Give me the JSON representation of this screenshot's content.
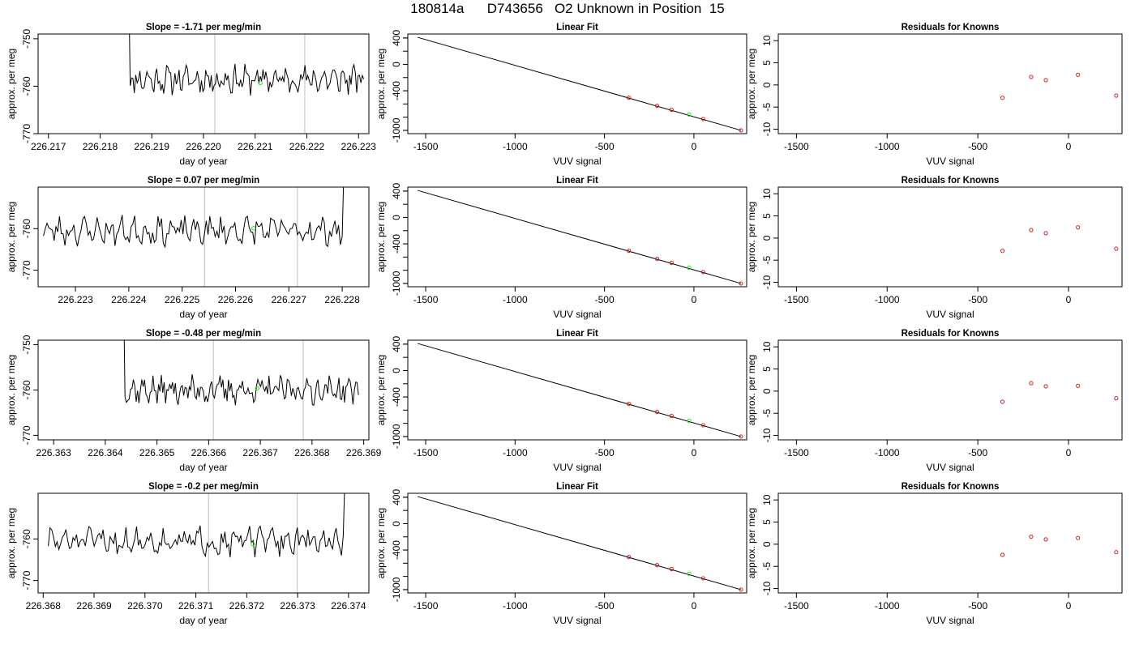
{
  "page_title": "180814a      D743656   O2 Unknown in Position  15",
  "colors": {
    "trace": "#000000",
    "unknown_marker": "#22dd22",
    "known_marker": "#cc2222",
    "cycle_markers": "#c8c8c8",
    "fit_line": "#000000"
  },
  "chart_data": [
    {
      "row": 1,
      "panel": "time-series",
      "type": "line",
      "title": "Slope =  -1.71  per meg/min",
      "xlabel": "day of year",
      "ylabel": "approx. per meg",
      "xlim": [
        226.2168,
        226.2232
      ],
      "ylim": [
        -770,
        -749
      ],
      "xticks": [
        "226.217",
        "226.218",
        "226.219",
        "226.220",
        "226.221",
        "226.222",
        "226.223"
      ],
      "yticks": [
        "-750",
        "-760",
        "-770"
      ],
      "trace": {
        "x_start": 226.2185,
        "x_end": 226.2231,
        "base": -758.6,
        "amplitude": 2.2,
        "spike": "start",
        "seed": 11
      },
      "cycle_lines": [
        226.22022,
        226.22196
      ],
      "unknown_point": {
        "x": 226.2211,
        "y": -759.3
      }
    },
    {
      "row": 1,
      "panel": "linear-fit",
      "type": "scatter",
      "title": "Linear Fit",
      "xlabel": "VUV signal",
      "ylabel": "approx. per meg",
      "xlim": [
        -1600,
        295
      ],
      "ylim": [
        -1050,
        460
      ],
      "xticks": [
        "-1500",
        "-1000",
        "-500",
        "0"
      ],
      "yticks": [
        "400",
        "0",
        "-400",
        "-1000"
      ],
      "fit_line": {
        "x": [
          -1545,
          263
        ],
        "y": [
          410,
          -1000
        ]
      },
      "known_points": [
        {
          "x": -364,
          "y": -505
        },
        {
          "x": -206,
          "y": -628
        },
        {
          "x": -125,
          "y": -688
        },
        {
          "x": 52,
          "y": -828
        },
        {
          "x": 263,
          "y": -1000
        }
      ],
      "unknown_point": {
        "x": -27,
        "y": -760
      }
    },
    {
      "row": 1,
      "panel": "residuals",
      "type": "scatter",
      "title": "Residuals for Knowns",
      "xlabel": "VUV signal",
      "ylabel": "approx. per meg",
      "xlim": [
        -1600,
        295
      ],
      "ylim": [
        -11,
        11.5
      ],
      "xticks": [
        "-1500",
        "-1000",
        "-500",
        "0"
      ],
      "yticks": [
        "10",
        "5",
        "0",
        "-5",
        "-10"
      ],
      "known_points": [
        {
          "x": -364,
          "y": -2.9
        },
        {
          "x": -206,
          "y": 1.8
        },
        {
          "x": -125,
          "y": 1.1
        },
        {
          "x": 52,
          "y": 2.3
        },
        {
          "x": 263,
          "y": -2.4
        }
      ]
    },
    {
      "row": 2,
      "panel": "time-series",
      "type": "line",
      "title": "Slope =  0.07  per meg/min",
      "xlabel": "day of year",
      "ylabel": "approx. per meg",
      "xlim": [
        226.2223,
        226.2285
      ],
      "ylim": [
        -774,
        -750
      ],
      "xticks": [
        "226.223",
        "226.224",
        "226.225",
        "226.226",
        "226.227",
        "226.228"
      ],
      "yticks": [
        "-760",
        "-770"
      ],
      "trace": {
        "x_start": 226.2224,
        "x_end": 226.2281,
        "base": -760.5,
        "amplitude": 2.5,
        "spike": "end",
        "seed": 23
      },
      "cycle_lines": [
        226.22542,
        226.22716
      ],
      "unknown_point": {
        "x": 226.22634,
        "y": -759.9
      }
    },
    {
      "row": 2,
      "panel": "linear-fit",
      "type": "scatter",
      "title": "Linear Fit",
      "xlabel": "VUV signal",
      "ylabel": "approx. per meg",
      "xlim": [
        -1600,
        295
      ],
      "ylim": [
        -1050,
        460
      ],
      "xticks": [
        "-1500",
        "-1000",
        "-500",
        "0"
      ],
      "yticks": [
        "400",
        "0",
        "-400",
        "-1000"
      ],
      "fit_line": {
        "x": [
          -1545,
          263
        ],
        "y": [
          410,
          -1000
        ]
      },
      "known_points": [
        {
          "x": -364,
          "y": -505
        },
        {
          "x": -206,
          "y": -628
        },
        {
          "x": -125,
          "y": -688
        },
        {
          "x": 52,
          "y": -828
        },
        {
          "x": 263,
          "y": -1000
        }
      ],
      "unknown_point": {
        "x": -27,
        "y": -760
      }
    },
    {
      "row": 2,
      "panel": "residuals",
      "type": "scatter",
      "title": "Residuals for Knowns",
      "xlabel": "VUV signal",
      "ylabel": "approx. per meg",
      "xlim": [
        -1600,
        295
      ],
      "ylim": [
        -11,
        11.5
      ],
      "xticks": [
        "-1500",
        "-1000",
        "-500",
        "0"
      ],
      "yticks": [
        "10",
        "5",
        "0",
        "-5",
        "-10"
      ],
      "known_points": [
        {
          "x": -364,
          "y": -2.9
        },
        {
          "x": -206,
          "y": 1.8
        },
        {
          "x": -125,
          "y": 1.1
        },
        {
          "x": 52,
          "y": 2.4
        },
        {
          "x": 263,
          "y": -2.4
        }
      ]
    },
    {
      "row": 3,
      "panel": "time-series",
      "type": "line",
      "title": "Slope =  -0.48  per meg/min",
      "xlabel": "day of year",
      "ylabel": "approx. per meg",
      "xlim": [
        226.3627,
        226.3691
      ],
      "ylim": [
        -771,
        -749
      ],
      "xticks": [
        "226.363",
        "226.364",
        "226.365",
        "226.366",
        "226.367",
        "226.368",
        "226.369"
      ],
      "yticks": [
        "-750",
        "-760",
        "-770"
      ],
      "trace": {
        "x_start": 226.3643,
        "x_end": 226.3689,
        "base": -760,
        "amplitude": 2.3,
        "spike": "start",
        "seed": 37
      },
      "cycle_lines": [
        226.36609,
        226.36783
      ],
      "unknown_point": {
        "x": 226.36694,
        "y": -759.6
      }
    },
    {
      "row": 3,
      "panel": "linear-fit",
      "type": "scatter",
      "title": "Linear Fit",
      "xlabel": "VUV signal",
      "ylabel": "approx. per meg",
      "xlim": [
        -1600,
        295
      ],
      "ylim": [
        -1050,
        460
      ],
      "xticks": [
        "-1500",
        "-1000",
        "-500",
        "0"
      ],
      "yticks": [
        "400",
        "0",
        "-400",
        "-1000"
      ],
      "fit_line": {
        "x": [
          -1545,
          263
        ],
        "y": [
          410,
          -1000
        ]
      },
      "known_points": [
        {
          "x": -364,
          "y": -505
        },
        {
          "x": -206,
          "y": -628
        },
        {
          "x": -125,
          "y": -688
        },
        {
          "x": 52,
          "y": -828
        },
        {
          "x": 263,
          "y": -1000
        }
      ],
      "unknown_point": {
        "x": -27,
        "y": -760
      }
    },
    {
      "row": 3,
      "panel": "residuals",
      "type": "scatter",
      "title": "Residuals for Knowns",
      "xlabel": "VUV signal",
      "ylabel": "approx. per meg",
      "xlim": [
        -1600,
        295
      ],
      "ylim": [
        -11,
        11.5
      ],
      "xticks": [
        "-1500",
        "-1000",
        "-500",
        "0"
      ],
      "yticks": [
        "10",
        "5",
        "0",
        "-5",
        "-10"
      ],
      "known_points": [
        {
          "x": -364,
          "y": -2.4
        },
        {
          "x": -206,
          "y": 1.8
        },
        {
          "x": -125,
          "y": 1.1
        },
        {
          "x": 52,
          "y": 1.2
        },
        {
          "x": 263,
          "y": -1.6
        }
      ]
    },
    {
      "row": 4,
      "panel": "time-series",
      "type": "line",
      "title": "Slope =  -0.2  per meg/min",
      "xlabel": "day of year",
      "ylabel": "approx. per meg",
      "xlim": [
        226.3679,
        226.3744
      ],
      "ylim": [
        -773,
        -749
      ],
      "xticks": [
        "226.368",
        "226.369",
        "226.370",
        "226.371",
        "226.372",
        "226.373",
        "226.374"
      ],
      "yticks": [
        "-760",
        "-770"
      ],
      "trace": {
        "x_start": 226.3681,
        "x_end": 226.374,
        "base": -760.5,
        "amplitude": 2.5,
        "spike": "end",
        "seed": 51
      },
      "cycle_lines": [
        226.37125,
        226.37299
      ],
      "unknown_point": {
        "x": 226.37212,
        "y": -761.2
      }
    },
    {
      "row": 4,
      "panel": "linear-fit",
      "type": "scatter",
      "title": "Linear Fit",
      "xlabel": "VUV signal",
      "ylabel": "approx. per meg",
      "xlim": [
        -1600,
        295
      ],
      "ylim": [
        -1050,
        460
      ],
      "xticks": [
        "-1500",
        "-1000",
        "-500",
        "0"
      ],
      "yticks": [
        "400",
        "0",
        "-400",
        "-1000"
      ],
      "fit_line": {
        "x": [
          -1545,
          263
        ],
        "y": [
          410,
          -1000
        ]
      },
      "known_points": [
        {
          "x": -364,
          "y": -505
        },
        {
          "x": -206,
          "y": -628
        },
        {
          "x": -125,
          "y": -688
        },
        {
          "x": 52,
          "y": -828
        },
        {
          "x": 263,
          "y": -1000
        }
      ],
      "unknown_point": {
        "x": -27,
        "y": -760
      }
    },
    {
      "row": 4,
      "panel": "residuals",
      "type": "scatter",
      "title": "Residuals for Knowns",
      "xlabel": "VUV signal",
      "ylabel": "approx. per meg",
      "xlim": [
        -1600,
        295
      ],
      "ylim": [
        -11,
        11.5
      ],
      "xticks": [
        "-1500",
        "-1000",
        "-500",
        "0"
      ],
      "yticks": [
        "10",
        "5",
        "0",
        "-5",
        "-10"
      ],
      "known_points": [
        {
          "x": -364,
          "y": -2.4
        },
        {
          "x": -206,
          "y": 1.7
        },
        {
          "x": -125,
          "y": 1.1
        },
        {
          "x": 52,
          "y": 1.4
        },
        {
          "x": 263,
          "y": -1.8
        }
      ]
    }
  ]
}
